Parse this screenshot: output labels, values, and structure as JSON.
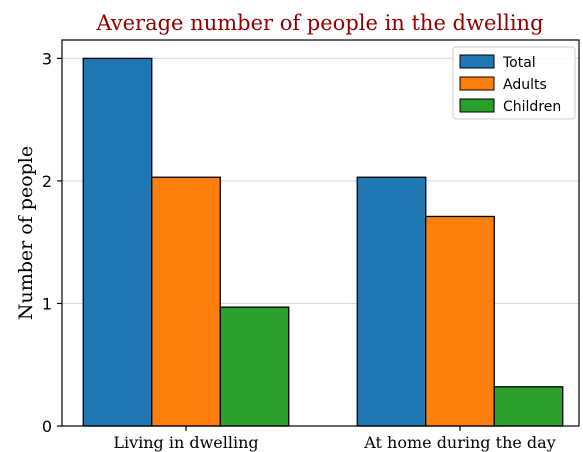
{
  "chart_data": {
    "type": "bar",
    "title": "Average number of people in the dwelling",
    "title_color": "#8b0000",
    "xlabel": "",
    "ylabel": "Number of people",
    "categories": [
      "Living in dwelling",
      "At home during the day"
    ],
    "series": [
      {
        "name": "Total",
        "values": [
          3.0,
          2.03
        ],
        "color": "#1f77b4"
      },
      {
        "name": "Adults",
        "values": [
          2.03,
          1.71
        ],
        "color": "#ff7f0e"
      },
      {
        "name": "Children",
        "values": [
          0.97,
          0.32
        ],
        "color": "#2ca02c"
      }
    ],
    "ylim": [
      0,
      3.15
    ],
    "yticks": [
      "0",
      "1",
      "2",
      "3"
    ],
    "grid": "y",
    "legend_position": "top-right"
  }
}
